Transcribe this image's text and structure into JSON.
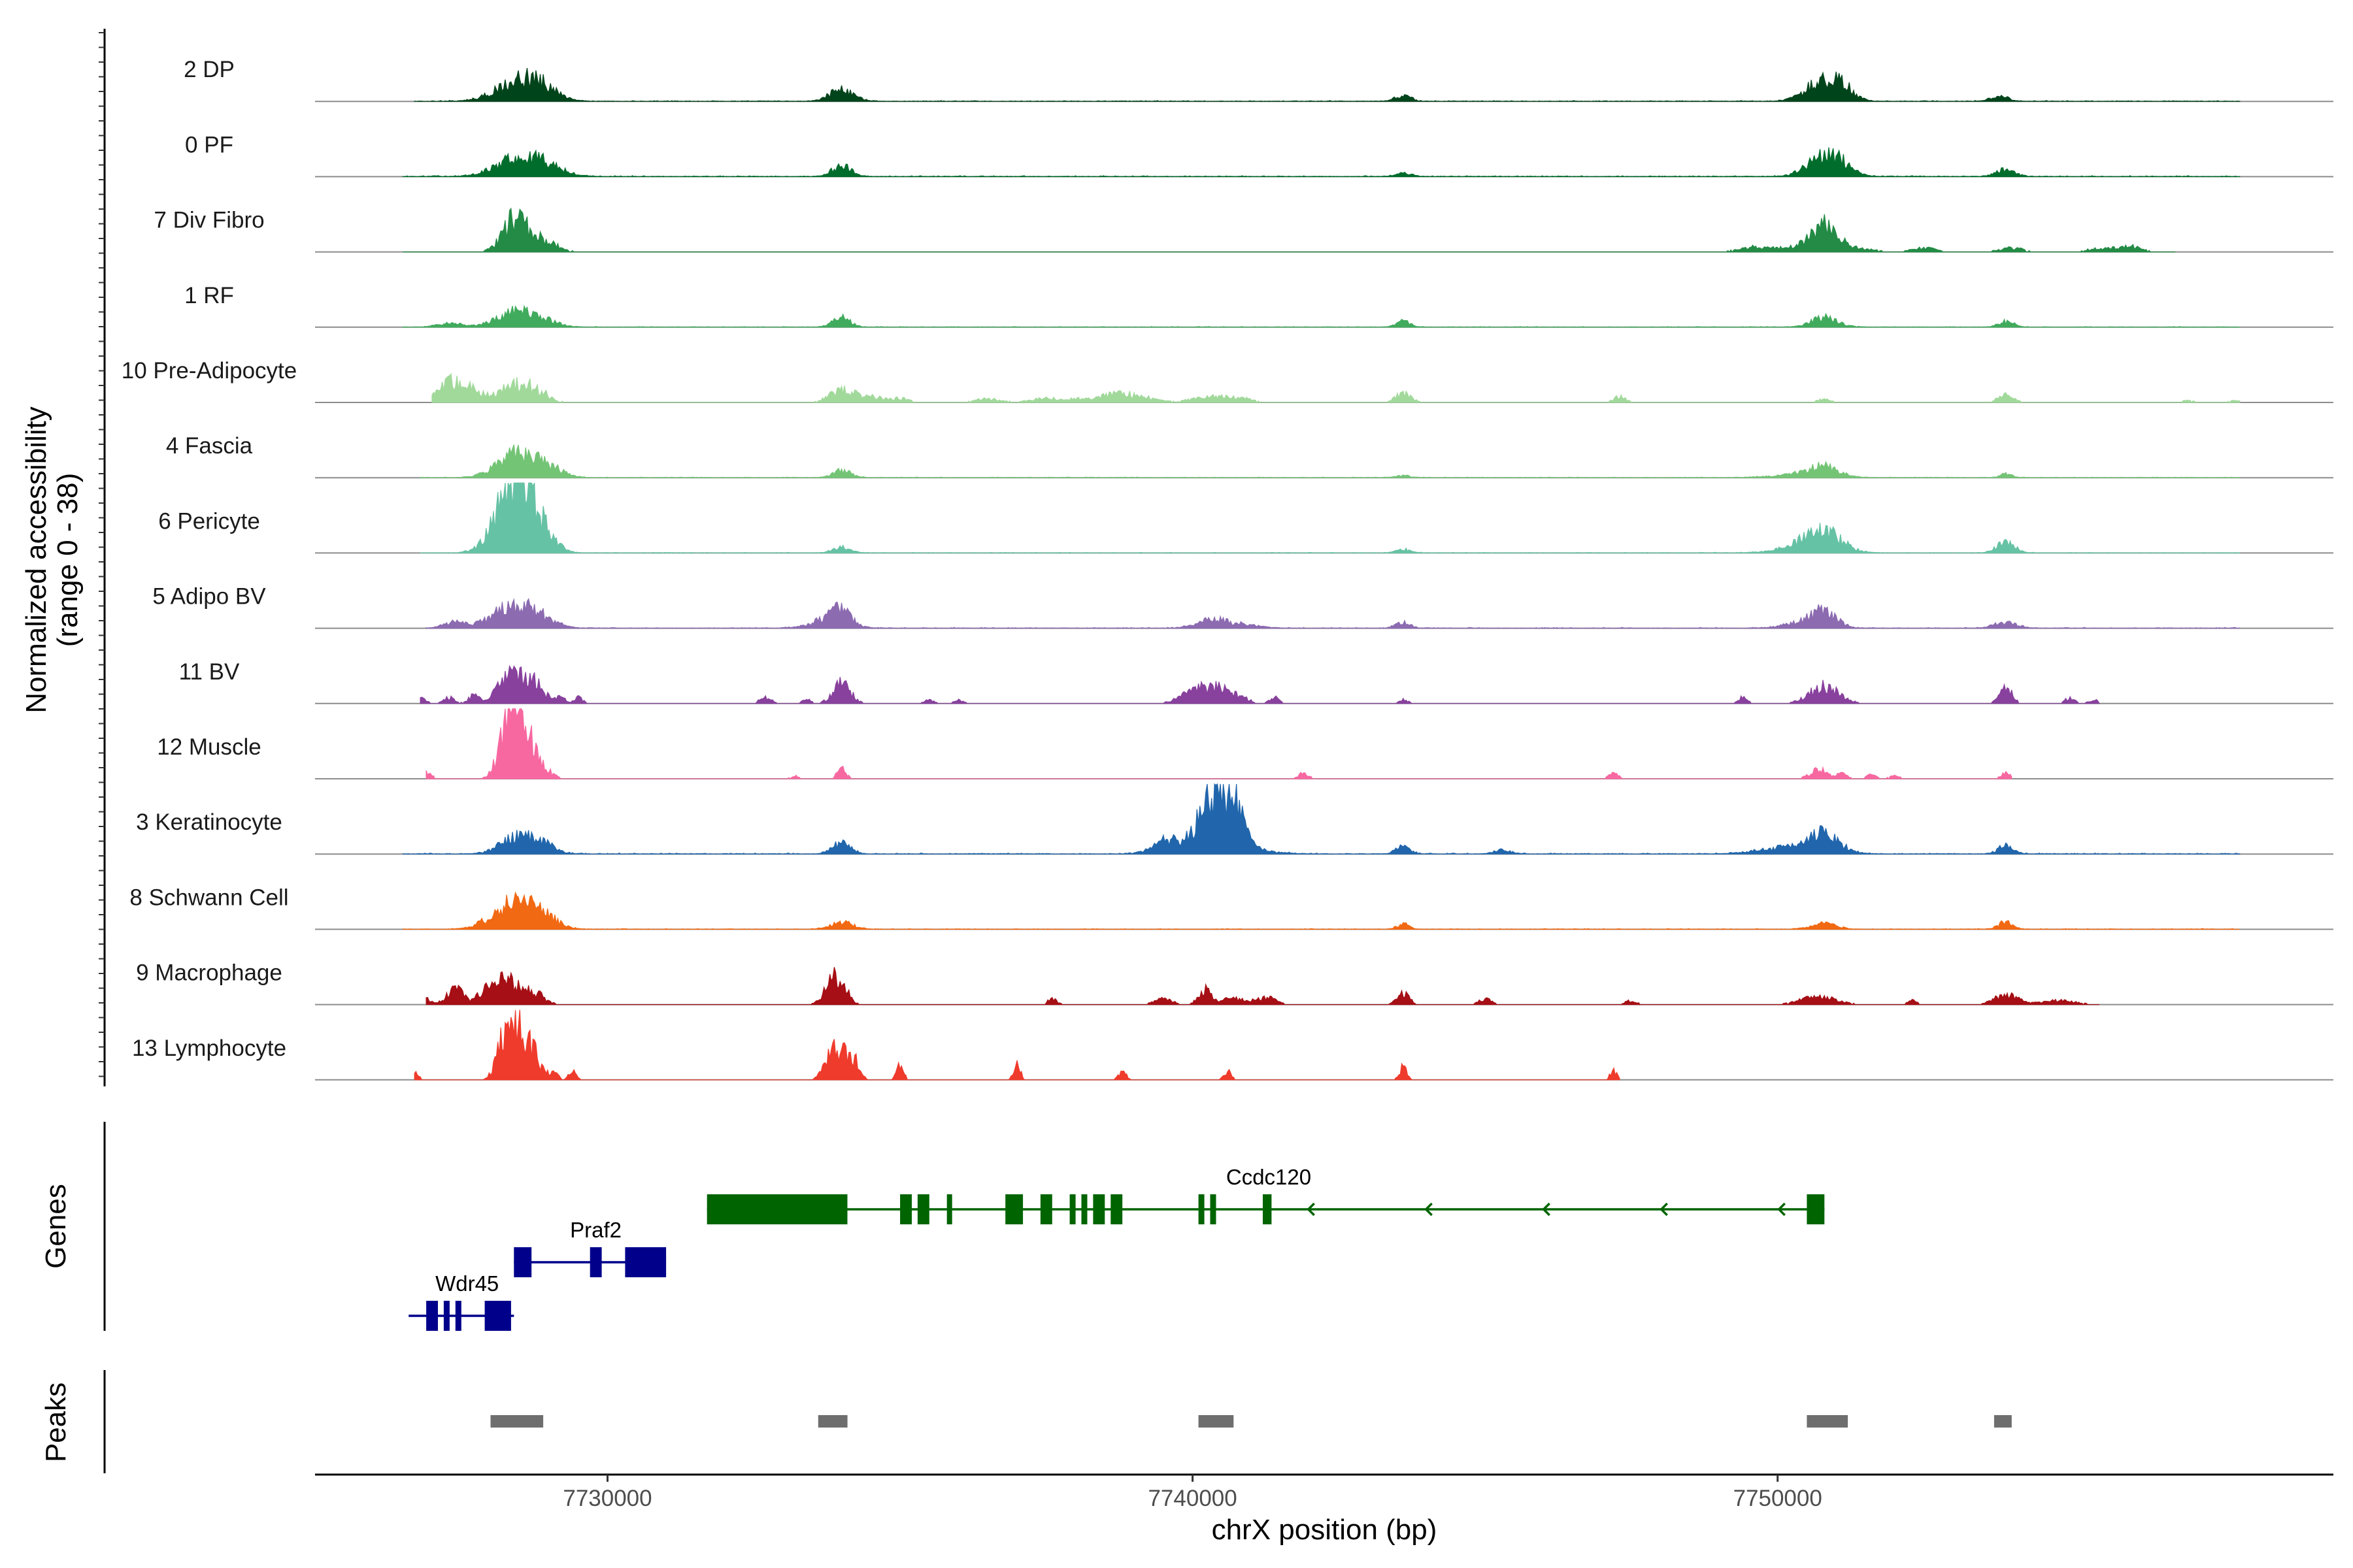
{
  "chart_data": {
    "type": "area",
    "title": "",
    "chromosome": "chrX",
    "xlabel": "chrX position (bp)",
    "ylabel_line1": "Normalized accessibility",
    "ylabel_line2": "(range 0 - 38)",
    "ylim": [
      0,
      38
    ],
    "xlim": [
      7725000,
      7759500
    ],
    "x_ticks": [
      7730000,
      7740000,
      7750000
    ],
    "x_tick_labels": [
      "7730000",
      "7740000",
      "7750000"
    ],
    "panel_labels": {
      "genes": "Genes",
      "peaks": "Peaks"
    },
    "tracks": [
      {
        "name": "2 DP",
        "color": "#00441b",
        "peaks": [
          [
            7728500,
            380,
            11
          ],
          [
            7728900,
            250,
            4
          ],
          [
            7734000,
            200,
            6
          ],
          [
            7743600,
            130,
            3
          ],
          [
            7750800,
            300,
            11
          ],
          [
            7751100,
            180,
            4
          ],
          [
            7753800,
            140,
            3
          ]
        ],
        "noise": 0.5,
        "sparse": false,
        "extent": [
          7726700,
          7757900
        ]
      },
      {
        "name": "0 PF",
        "color": "#006d2c",
        "peaks": [
          [
            7728500,
            380,
            10
          ],
          [
            7729000,
            300,
            3
          ],
          [
            7734000,
            160,
            6
          ],
          [
            7743600,
            130,
            2
          ],
          [
            7750800,
            280,
            11
          ],
          [
            7751100,
            200,
            3
          ],
          [
            7753900,
            150,
            4
          ]
        ],
        "noise": 0.6,
        "sparse": false,
        "extent": [
          7726500,
          7757900
        ]
      },
      {
        "name": "7 Div Fibro",
        "color": "#238b45",
        "peaks": [
          [
            7728400,
            200,
            15
          ],
          [
            7728700,
            250,
            5
          ],
          [
            7729000,
            200,
            3
          ],
          [
            7750800,
            200,
            12
          ],
          [
            7750400,
            500,
            3
          ],
          [
            7751300,
            300,
            2
          ],
          [
            7749500,
            200,
            2
          ],
          [
            7752500,
            200,
            2
          ],
          [
            7754000,
            200,
            2
          ],
          [
            7755500,
            200,
            2
          ],
          [
            7756000,
            200,
            3
          ]
        ],
        "noise": 0.6,
        "sparse": true,
        "extent": [
          7726500,
          7756800
        ]
      },
      {
        "name": "1 RF",
        "color": "#41ab5d",
        "peaks": [
          [
            7728400,
            300,
            8
          ],
          [
            7728900,
            250,
            3
          ],
          [
            7727300,
            200,
            2
          ],
          [
            7734000,
            150,
            5
          ],
          [
            7743600,
            120,
            3
          ],
          [
            7750800,
            220,
            5
          ],
          [
            7753900,
            130,
            3
          ]
        ],
        "noise": 0.4,
        "sparse": false,
        "extent": [
          7726500,
          7757900
        ]
      },
      {
        "name": "10 Pre-Adipocyte",
        "color": "#a1d99b",
        "peaks": [
          [
            7727300,
            200,
            10
          ],
          [
            7727700,
            200,
            6
          ],
          [
            7728400,
            250,
            9
          ],
          [
            7728800,
            200,
            5
          ],
          [
            7734000,
            200,
            7
          ],
          [
            7734500,
            200,
            3
          ],
          [
            7735000,
            150,
            2
          ],
          [
            7736500,
            200,
            2
          ],
          [
            7737500,
            300,
            2
          ],
          [
            7738500,
            400,
            3
          ],
          [
            7739000,
            300,
            3
          ],
          [
            7740300,
            300,
            3
          ],
          [
            7740800,
            200,
            2
          ],
          [
            7743600,
            130,
            5
          ],
          [
            7747300,
            100,
            3
          ],
          [
            7750800,
            100,
            2
          ],
          [
            7753900,
            130,
            4
          ],
          [
            7757000,
            100,
            1
          ],
          [
            7757800,
            100,
            1
          ]
        ],
        "noise": 0.4,
        "sparse": true,
        "extent": [
          7727000,
          7757900
        ]
      },
      {
        "name": "4 Fascia",
        "color": "#74c476",
        "peaks": [
          [
            7728500,
            350,
            13
          ],
          [
            7729000,
            250,
            3
          ],
          [
            7734000,
            150,
            4
          ],
          [
            7743600,
            120,
            1
          ],
          [
            7750800,
            250,
            5
          ],
          [
            7750400,
            400,
            2
          ],
          [
            7753900,
            100,
            2
          ]
        ],
        "noise": 0.4,
        "sparse": false,
        "extent": [
          7726800,
          7757900
        ]
      },
      {
        "name": "6 Pericyte",
        "color": "#66c2a4",
        "peaks": [
          [
            7728400,
            300,
            34
          ],
          [
            7728700,
            250,
            10
          ],
          [
            7729000,
            200,
            3
          ],
          [
            7734000,
            150,
            3
          ],
          [
            7743600,
            120,
            2
          ],
          [
            7750800,
            300,
            10
          ],
          [
            7750400,
            400,
            3
          ],
          [
            7753900,
            150,
            6
          ]
        ],
        "noise": 0.4,
        "sparse": false,
        "extent": [
          7726800,
          7757900
        ]
      },
      {
        "name": "5 Adipo BV",
        "color": "#8c6bb1",
        "peaks": [
          [
            7727400,
            200,
            3
          ],
          [
            7728400,
            350,
            12
          ],
          [
            7728900,
            250,
            3
          ],
          [
            7733800,
            300,
            5
          ],
          [
            7734000,
            150,
            6
          ],
          [
            7740300,
            250,
            4
          ],
          [
            7740800,
            300,
            2
          ],
          [
            7743600,
            120,
            3
          ],
          [
            7750800,
            200,
            9
          ],
          [
            7750400,
            300,
            3
          ],
          [
            7753900,
            200,
            3
          ]
        ],
        "noise": 0.5,
        "sparse": false,
        "extent": [
          7726900,
          7757900
        ]
      },
      {
        "name": "11 BV",
        "color": "#88419d",
        "peaks": [
          [
            7726800,
            80,
            4
          ],
          [
            7727300,
            100,
            3
          ],
          [
            7727700,
            80,
            4
          ],
          [
            7728400,
            250,
            16
          ],
          [
            7728800,
            150,
            6
          ],
          [
            7729200,
            80,
            3
          ],
          [
            7729500,
            80,
            3
          ],
          [
            7732700,
            100,
            3
          ],
          [
            7733400,
            80,
            2
          ],
          [
            7734000,
            150,
            11
          ],
          [
            7735500,
            80,
            2
          ],
          [
            7736000,
            80,
            2
          ],
          [
            7740200,
            300,
            9
          ],
          [
            7740700,
            200,
            4
          ],
          [
            7741400,
            80,
            3
          ],
          [
            7743600,
            80,
            2
          ],
          [
            7749400,
            80,
            3
          ],
          [
            7750800,
            250,
            9
          ],
          [
            7753900,
            100,
            10
          ],
          [
            7755000,
            80,
            3
          ],
          [
            7755400,
            80,
            2
          ]
        ],
        "noise": 0,
        "sparse": true,
        "extent": [
          7726800,
          7755500
        ]
      },
      {
        "name": "12 Muscle",
        "color": "#f768a1",
        "peaks": [
          [
            7726900,
            80,
            4
          ],
          [
            7728300,
            150,
            20
          ],
          [
            7728500,
            200,
            30
          ],
          [
            7728900,
            150,
            4
          ],
          [
            7733200,
            60,
            2
          ],
          [
            7734000,
            80,
            5
          ],
          [
            7741900,
            80,
            3
          ],
          [
            7747200,
            80,
            3
          ],
          [
            7750700,
            150,
            5
          ],
          [
            7751100,
            80,
            3
          ],
          [
            7751600,
            80,
            2
          ],
          [
            7752000,
            80,
            2
          ],
          [
            7753900,
            80,
            3
          ]
        ],
        "noise": 0,
        "sparse": true,
        "extent": [
          7726900,
          7754000
        ]
      },
      {
        "name": "3 Keratinocyte",
        "color": "#2166ac",
        "peaks": [
          [
            7728500,
            300,
            9
          ],
          [
            7728900,
            200,
            3
          ],
          [
            7734000,
            150,
            6
          ],
          [
            7739600,
            250,
            7
          ],
          [
            7740300,
            180,
            26
          ],
          [
            7740700,
            150,
            24
          ],
          [
            7740500,
            500,
            6
          ],
          [
            7743600,
            120,
            4
          ],
          [
            7745300,
            150,
            2
          ],
          [
            7750800,
            250,
            8
          ],
          [
            7750300,
            500,
            4
          ],
          [
            7753900,
            120,
            5
          ]
        ],
        "noise": 0.6,
        "sparse": false,
        "extent": [
          7726500,
          7757900
        ]
      },
      {
        "name": "8 Schwann Cell",
        "color": "#f16913",
        "peaks": [
          [
            7728400,
            350,
            14
          ],
          [
            7728900,
            250,
            5
          ],
          [
            7734000,
            180,
            4
          ],
          [
            7743600,
            100,
            3
          ],
          [
            7750800,
            200,
            3
          ],
          [
            7753900,
            120,
            4
          ]
        ],
        "noise": 0.4,
        "sparse": false,
        "extent": [
          7726500,
          7757900
        ]
      },
      {
        "name": "9 Macrophage",
        "color": "#a50f15",
        "peaks": [
          [
            7726900,
            80,
            3
          ],
          [
            7727400,
            150,
            8
          ],
          [
            7727900,
            100,
            6
          ],
          [
            7728300,
            250,
            14
          ],
          [
            7728800,
            150,
            4
          ],
          [
            7733900,
            150,
            17
          ],
          [
            7737600,
            80,
            3
          ],
          [
            7739500,
            150,
            3
          ],
          [
            7740200,
            100,
            7
          ],
          [
            7740700,
            300,
            3
          ],
          [
            7741300,
            150,
            3
          ],
          [
            7743600,
            100,
            6
          ],
          [
            7745000,
            100,
            3
          ],
          [
            7747500,
            100,
            2
          ],
          [
            7750700,
            300,
            4
          ],
          [
            7752300,
            80,
            2
          ],
          [
            7753900,
            200,
            5
          ],
          [
            7754800,
            300,
            2
          ]
        ],
        "noise": 0,
        "sparse": true,
        "extent": [
          7726900,
          7755500
        ]
      },
      {
        "name": "13 Lymphocyte",
        "color": "#ef3b2c",
        "peaks": [
          [
            7726700,
            60,
            5
          ],
          [
            7728300,
            150,
            26
          ],
          [
            7728600,
            200,
            20
          ],
          [
            7729100,
            60,
            5
          ],
          [
            7729400,
            60,
            5
          ],
          [
            7733900,
            150,
            18
          ],
          [
            7734200,
            100,
            10
          ],
          [
            7735000,
            60,
            7
          ],
          [
            7737000,
            60,
            8
          ],
          [
            7738800,
            60,
            5
          ],
          [
            7740600,
            60,
            5
          ],
          [
            7743600,
            60,
            7
          ],
          [
            7747200,
            60,
            5
          ]
        ],
        "noise": 0,
        "sparse": true,
        "extent": [
          7726700,
          7747300
        ]
      }
    ],
    "genes": [
      {
        "name": "Ccdc120",
        "strand": "-",
        "color": "#006400",
        "row": 0,
        "start": 7731700,
        "end": 7750800,
        "label_pos": 7741300,
        "exons": [
          [
            7731700,
            7734100
          ],
          [
            7735000,
            7735200
          ],
          [
            7735300,
            7735500
          ],
          [
            7735800,
            7735880
          ],
          [
            7736800,
            7737100
          ],
          [
            7737400,
            7737600
          ],
          [
            7737900,
            7738000
          ],
          [
            7738100,
            7738200
          ],
          [
            7738300,
            7738500
          ],
          [
            7738600,
            7738800
          ],
          [
            7740100,
            7740200
          ],
          [
            7740300,
            7740400
          ],
          [
            7741200,
            7741350
          ],
          [
            7750500,
            7750800
          ]
        ]
      },
      {
        "name": "Praf2",
        "strand": "+",
        "color": "#00008b",
        "row": 1,
        "start": 7728400,
        "end": 7731000,
        "label_pos": 7729800,
        "exons": [
          [
            7728400,
            7728700
          ],
          [
            7729700,
            7729900
          ],
          [
            7730300,
            7731000
          ]
        ]
      },
      {
        "name": "Wdr45",
        "strand": "+",
        "color": "#00008b",
        "row": 2,
        "start": 7726600,
        "end": 7728400,
        "label_pos": 7727600,
        "exons": [
          [
            7726900,
            7727100
          ],
          [
            7727200,
            7727300
          ],
          [
            7727400,
            7727500
          ],
          [
            7727900,
            7728350
          ]
        ]
      }
    ],
    "peaks_regions": [
      [
        7728000,
        7728900
      ],
      [
        7733600,
        7734100
      ],
      [
        7740100,
        7740700
      ],
      [
        7750500,
        7751200
      ],
      [
        7753700,
        7754000
      ]
    ]
  }
}
